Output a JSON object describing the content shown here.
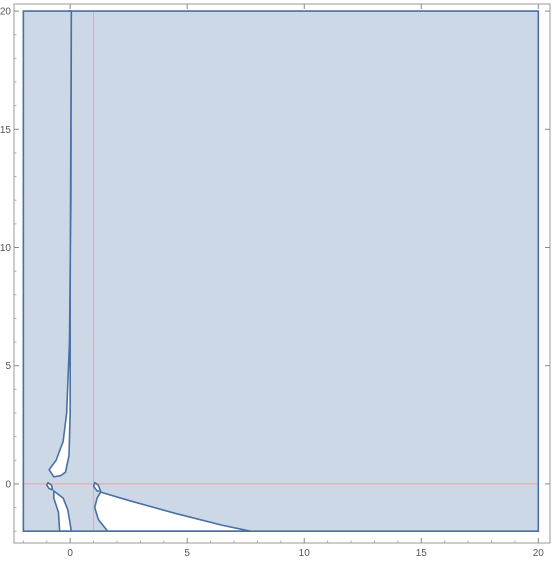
{
  "chart_data": {
    "type": "region",
    "title": "",
    "xlabel": "",
    "ylabel": "",
    "xlim": [
      -2.4,
      20.5
    ],
    "ylim": [
      -2.5,
      20.3
    ],
    "grid": false,
    "x_ticks": [
      0,
      5,
      10,
      15,
      20
    ],
    "y_ticks": [
      0,
      5,
      10,
      15,
      20
    ],
    "x_tick_labels": [
      "0",
      "5",
      "10",
      "15",
      "20"
    ],
    "y_tick_labels": [
      "0",
      "5",
      "10",
      "15",
      "20"
    ],
    "reference_lines": {
      "vertical_x": 1,
      "horizontal_y": 0,
      "color": "#f2a0a0"
    },
    "region": {
      "fill_color": "#cdd8e6",
      "boundary_color": "#4a6fa5",
      "outer_box": {
        "x_range": [
          -2,
          20
        ],
        "y_range": [
          -2,
          20
        ]
      },
      "holes": [
        {
          "name": "upper-left-slit",
          "points": [
            [
              -0.05,
              20
            ],
            [
              0.05,
              20
            ],
            [
              0.03,
              12
            ],
            [
              -0.03,
              6
            ],
            [
              -0.15,
              3
            ],
            [
              -0.3,
              1.8
            ],
            [
              -0.6,
              1.0
            ],
            [
              -0.9,
              0.6
            ],
            [
              -0.7,
              0.3
            ],
            [
              -0.4,
              0.35
            ],
            [
              -0.2,
              0.5
            ],
            [
              -0.05,
              1.2
            ],
            [
              0.0,
              3
            ],
            [
              0.0,
              8
            ],
            [
              0.05,
              20
            ]
          ]
        },
        {
          "name": "lower-left-gap",
          "points": [
            [
              -0.7,
              -0.3
            ],
            [
              -0.3,
              -0.6
            ],
            [
              -0.1,
              -1.1
            ],
            [
              0.05,
              -2
            ],
            [
              -0.45,
              -2
            ],
            [
              -0.5,
              -1.2
            ],
            [
              -0.7,
              -0.6
            ]
          ]
        },
        {
          "name": "lower-right-wedge",
          "points": [
            [
              1.3,
              -0.35
            ],
            [
              2.5,
              -0.7
            ],
            [
              4.5,
              -1.25
            ],
            [
              6.5,
              -1.75
            ],
            [
              7.7,
              -2
            ],
            [
              1.6,
              -2
            ],
            [
              1.2,
              -1.5
            ],
            [
              1.05,
              -1.0
            ],
            [
              1.15,
              -0.6
            ]
          ]
        },
        {
          "name": "small-loop-left",
          "points": [
            [
              -0.95,
              0.05
            ],
            [
              -0.8,
              -0.05
            ],
            [
              -0.75,
              -0.25
            ],
            [
              -0.9,
              -0.2
            ],
            [
              -1.0,
              -0.05
            ]
          ]
        },
        {
          "name": "small-loop-right",
          "points": [
            [
              1.05,
              0.05
            ],
            [
              1.2,
              -0.05
            ],
            [
              1.3,
              -0.3
            ],
            [
              1.15,
              -0.3
            ],
            [
              1.0,
              -0.1
            ]
          ]
        }
      ]
    }
  }
}
